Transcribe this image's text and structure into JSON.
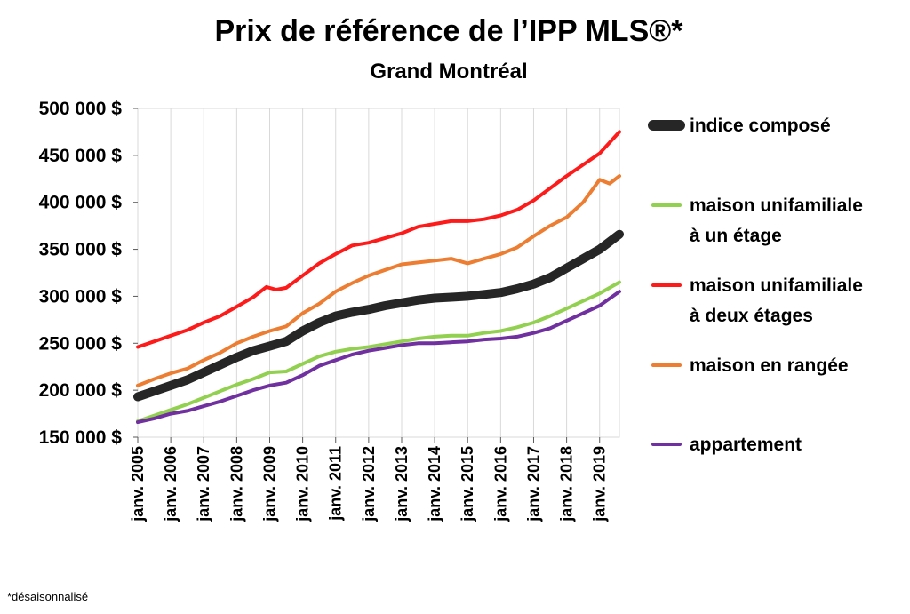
{
  "footnote": "*désaisonnalisé",
  "chart_data": {
    "type": "line",
    "title": "Prix de référence de l’IPP MLS®*",
    "subtitle": "Grand Montréal",
    "xlabel": "",
    "ylabel": "",
    "x_range": [
      2005,
      2019.6
    ],
    "ylim": [
      150000,
      500000
    ],
    "y_ticks": [
      {
        "value": 150000,
        "label": "150 000 $"
      },
      {
        "value": 200000,
        "label": "200 000 $"
      },
      {
        "value": 250000,
        "label": "250 000 $"
      },
      {
        "value": 300000,
        "label": "300 000 $"
      },
      {
        "value": 350000,
        "label": "350 000 $"
      },
      {
        "value": 400000,
        "label": "400 000 $"
      },
      {
        "value": 450000,
        "label": "450 000 $"
      },
      {
        "value": 500000,
        "label": "500 000 $"
      }
    ],
    "x_ticks": [
      {
        "value": 2005,
        "label": "janv. 2005"
      },
      {
        "value": 2006,
        "label": "janv. 2006"
      },
      {
        "value": 2007,
        "label": "janv. 2007"
      },
      {
        "value": 2008,
        "label": "janv. 2008"
      },
      {
        "value": 2009,
        "label": "janv. 2009"
      },
      {
        "value": 2010,
        "label": "janv. 2010"
      },
      {
        "value": 2011,
        "label": "janv. 2011"
      },
      {
        "value": 2012,
        "label": "janv. 2012"
      },
      {
        "value": 2013,
        "label": "janv. 2013"
      },
      {
        "value": 2014,
        "label": "janv. 2014"
      },
      {
        "value": 2015,
        "label": "janv. 2015"
      },
      {
        "value": 2016,
        "label": "janv. 2016"
      },
      {
        "value": 2017,
        "label": "janv. 2017"
      },
      {
        "value": 2018,
        "label": "janv. 2018"
      },
      {
        "value": 2019,
        "label": "janv. 2019"
      }
    ],
    "grid": "vertical",
    "legend_position": "right",
    "series": [
      {
        "name": "maison unifamiliale à deux étages",
        "legend_lines": [
          "maison unifamiliale",
          "à deux étages"
        ],
        "color": "#ff1a1a",
        "x": [
          2005,
          2005.5,
          2006,
          2006.5,
          2007,
          2007.5,
          2008,
          2008.5,
          2008.9,
          2009.2,
          2009.5,
          2010,
          2010.5,
          2011,
          2011.5,
          2012,
          2012.5,
          2013,
          2013.5,
          2014,
          2014.5,
          2015,
          2015.5,
          2016,
          2016.5,
          2017,
          2017.5,
          2018,
          2018.5,
          2019,
          2019.6
        ],
        "y": [
          246000,
          252000,
          258000,
          264000,
          272000,
          279000,
          289000,
          299000,
          310000,
          307000,
          309000,
          322000,
          335000,
          345000,
          354000,
          357000,
          362000,
          367000,
          374000,
          377000,
          380000,
          380000,
          382000,
          386000,
          392000,
          402000,
          415000,
          428000,
          440000,
          452000,
          475000
        ]
      },
      {
        "name": "maison en rangée",
        "legend_lines": [
          "maison en rangée"
        ],
        "color": "#ed7d31",
        "x": [
          2005,
          2005.5,
          2006,
          2006.5,
          2007,
          2007.5,
          2008,
          2008.5,
          2009,
          2009.5,
          2010,
          2010.5,
          2011,
          2011.5,
          2012,
          2012.5,
          2013,
          2013.5,
          2014,
          2014.5,
          2015,
          2015.5,
          2016,
          2016.5,
          2017,
          2017.5,
          2018,
          2018.5,
          2019,
          2019.3,
          2019.6
        ],
        "y": [
          205000,
          212000,
          218000,
          223000,
          232000,
          240000,
          250000,
          257000,
          263000,
          268000,
          282000,
          292000,
          305000,
          314000,
          322000,
          328000,
          334000,
          336000,
          338000,
          340000,
          335000,
          340000,
          345000,
          352000,
          364000,
          375000,
          384000,
          400000,
          424000,
          420000,
          428000
        ]
      },
      {
        "name": "indice composé",
        "legend_lines": [
          "indice composé"
        ],
        "color": "#262626",
        "x": [
          2005,
          2005.5,
          2006,
          2006.5,
          2007,
          2007.5,
          2008,
          2008.5,
          2009,
          2009.5,
          2010,
          2010.5,
          2011,
          2011.5,
          2012,
          2012.5,
          2013,
          2013.5,
          2014,
          2014.5,
          2015,
          2015.5,
          2016,
          2016.5,
          2017,
          2017.5,
          2018,
          2018.5,
          2019,
          2019.6
        ],
        "y": [
          193000,
          199000,
          205000,
          211000,
          219000,
          227000,
          235000,
          242000,
          247000,
          252000,
          263000,
          272000,
          279000,
          283000,
          286000,
          290000,
          293000,
          296000,
          298000,
          299000,
          300000,
          302000,
          304000,
          308000,
          313000,
          320000,
          330000,
          340000,
          350000,
          366000
        ]
      },
      {
        "name": "maison unifamiliale à un étage",
        "legend_lines": [
          "maison unifamiliale",
          "à un étage"
        ],
        "color": "#92d050",
        "x": [
          2005,
          2005.5,
          2006,
          2006.5,
          2007,
          2007.5,
          2008,
          2008.5,
          2009,
          2009.5,
          2010,
          2010.5,
          2011,
          2011.5,
          2012,
          2012.5,
          2013,
          2013.5,
          2014,
          2014.5,
          2015,
          2015.5,
          2016,
          2016.5,
          2017,
          2017.5,
          2018,
          2018.5,
          2019,
          2019.6
        ],
        "y": [
          167000,
          173000,
          179000,
          185000,
          192000,
          199000,
          206000,
          212000,
          219000,
          220000,
          228000,
          236000,
          241000,
          244000,
          246000,
          249000,
          252000,
          255000,
          257000,
          258000,
          258000,
          261000,
          263000,
          267000,
          272000,
          279000,
          287000,
          295000,
          303000,
          315000
        ]
      },
      {
        "name": "appartement",
        "legend_lines": [
          "appartement"
        ],
        "color": "#7030a0",
        "x": [
          2005,
          2005.5,
          2006,
          2006.5,
          2007,
          2007.5,
          2008,
          2008.5,
          2009,
          2009.5,
          2010,
          2010.5,
          2011,
          2011.5,
          2012,
          2012.5,
          2013,
          2013.5,
          2014,
          2014.5,
          2015,
          2015.5,
          2016,
          2016.5,
          2017,
          2017.5,
          2018,
          2018.5,
          2019,
          2019.6
        ],
        "y": [
          166000,
          170000,
          175000,
          178000,
          183000,
          188000,
          194000,
          200000,
          205000,
          208000,
          216000,
          226000,
          232000,
          238000,
          242000,
          245000,
          248000,
          250000,
          250000,
          251000,
          252000,
          254000,
          255000,
          257000,
          261000,
          266000,
          274000,
          282000,
          290000,
          305000
        ]
      }
    ],
    "legend_order": [
      "indice composé",
      "maison unifamiliale à un étage",
      "maison unifamiliale à deux étages",
      "maison en rangée",
      "appartement"
    ]
  }
}
